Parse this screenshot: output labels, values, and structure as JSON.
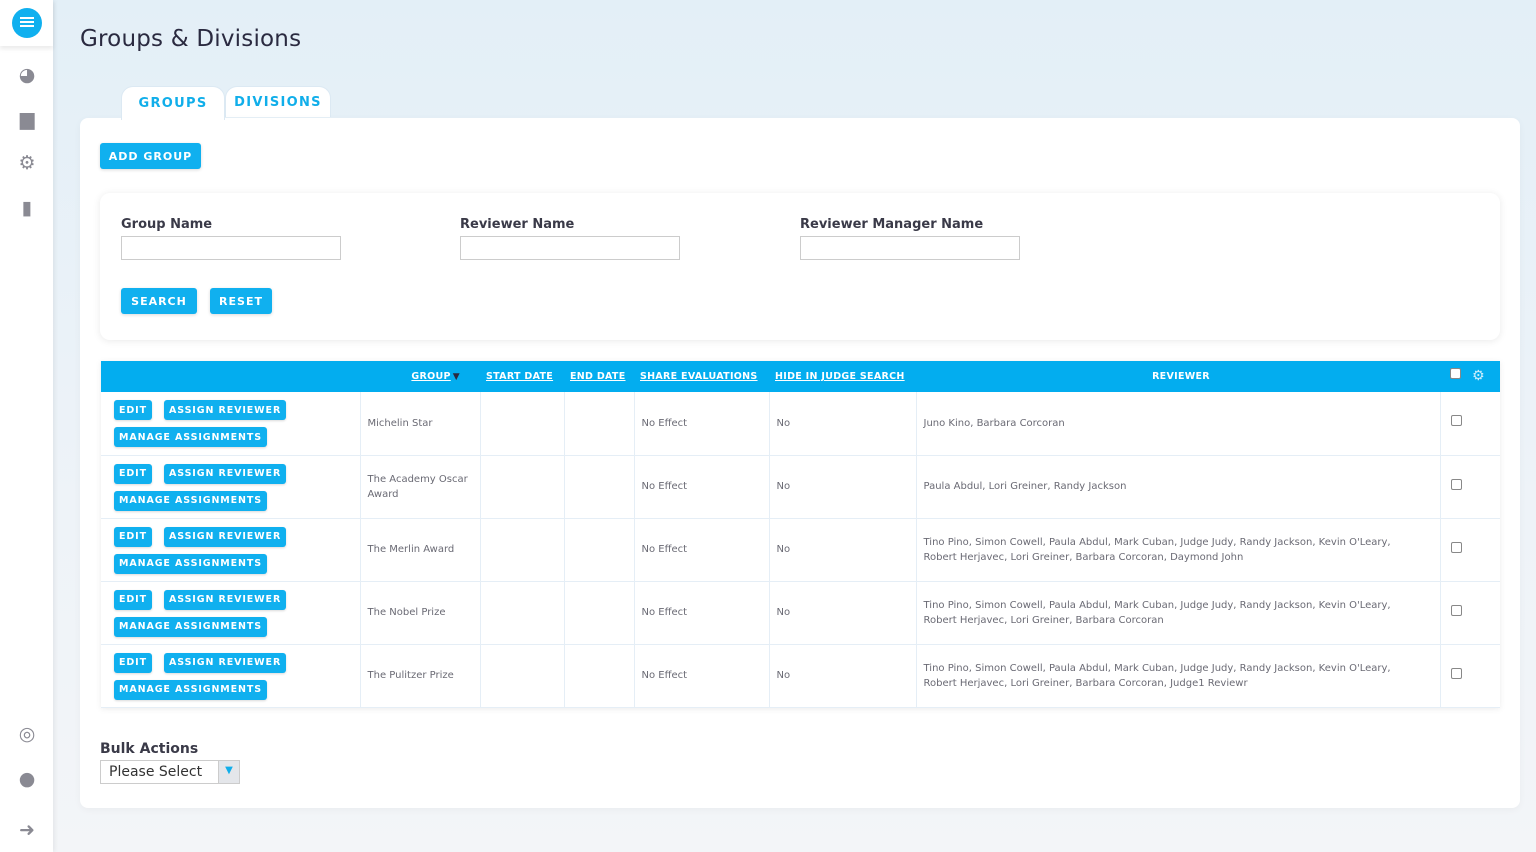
{
  "page_title": "Groups & Divisions",
  "tabs": [
    {
      "label": "GROUPS",
      "active": true
    },
    {
      "label": "DIVISIONS",
      "active": false
    }
  ],
  "add_group": "ADD GROUP",
  "filters": {
    "group_name_label": "Group Name",
    "group_name_value": "",
    "reviewer_name_label": "Reviewer Name",
    "reviewer_name_value": "",
    "reviewer_manager_label": "Reviewer Manager Name",
    "reviewer_manager_value": "",
    "search": "SEARCH",
    "reset": "RESET"
  },
  "table": {
    "headers": {
      "group": "GROUP",
      "start_date": "START DATE",
      "end_date": "END DATE",
      "share": "SHARE EVALUATIONS",
      "hide": "HIDE IN JUDGE SEARCH",
      "reviewer": "REVIEWER"
    },
    "actions": {
      "edit": "EDIT",
      "assign": "ASSIGN REVIEWER",
      "manage": "MANAGE ASSIGNMENTS"
    },
    "rows": [
      {
        "group": "Michelin Star",
        "start": "",
        "end": "",
        "share": "No Effect",
        "hide": "No",
        "reviewer": "Juno Kino, Barbara Corcoran"
      },
      {
        "group": "The Academy Oscar Award",
        "start": "",
        "end": "",
        "share": "No Effect",
        "hide": "No",
        "reviewer": "Paula Abdul, Lori Greiner, Randy Jackson"
      },
      {
        "group": "The Merlin Award",
        "start": "",
        "end": "",
        "share": "No Effect",
        "hide": "No",
        "reviewer": "Tino Pino, Simon Cowell, Paula Abdul, Mark Cuban, Judge Judy, Randy Jackson, Kevin O'Leary, Robert Herjavec, Lori Greiner, Barbara Corcoran, Daymond John"
      },
      {
        "group": "The Nobel Prize",
        "start": "",
        "end": "",
        "share": "No Effect",
        "hide": "No",
        "reviewer": "Tino Pino, Simon Cowell, Paula Abdul, Mark Cuban, Judge Judy, Randy Jackson, Kevin O'Leary, Robert Herjavec, Lori Greiner, Barbara Corcoran"
      },
      {
        "group": "The Pulitzer Prize",
        "start": "",
        "end": "",
        "share": "No Effect",
        "hide": "No",
        "reviewer": "Tino Pino, Simon Cowell, Paula Abdul, Mark Cuban, Judge Judy, Randy Jackson, Kevin O'Leary, Robert Herjavec, Lori Greiner, Barbara Corcoran, Judge1 Reviewr"
      }
    ]
  },
  "bulk": {
    "label": "Bulk Actions",
    "selected": "Please Select"
  },
  "colors": {
    "accent": "#03adef"
  }
}
